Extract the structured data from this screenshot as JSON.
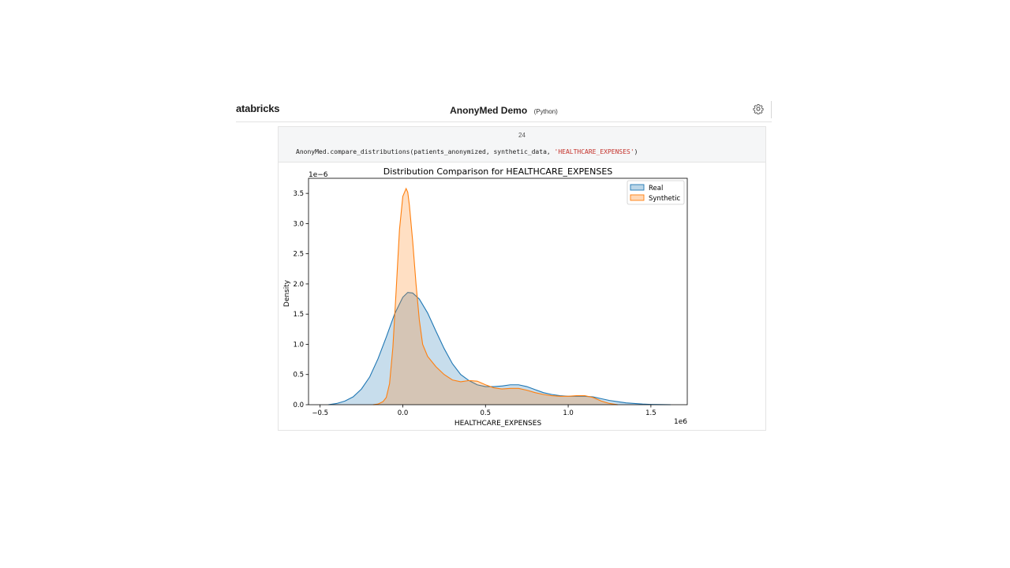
{
  "app": {
    "brand": "atabricks",
    "notebook_title": "AnonyMed Demo",
    "language": "(Python)",
    "settings_icon": "gear-icon"
  },
  "cell": {
    "number": "24",
    "code_prefix": "AnonyMed.compare_distributions(patients_anonymized, synthetic_data, ",
    "code_string": "'HEALTHCARE_EXPENSES'",
    "code_suffix": ")"
  },
  "chart_data": {
    "type": "area",
    "title": "Distribution Comparison for HEALTHCARE_EXPENSES",
    "xlabel": "HEALTHCARE_EXPENSES",
    "ylabel": "Density",
    "x_offset_text": "1e6",
    "y_offset_text": "1e−6",
    "xlim": [
      -0.57,
      1.72
    ],
    "ylim": [
      0,
      3.75
    ],
    "x_ticks": [
      -0.5,
      0.0,
      0.5,
      1.0,
      1.5
    ],
    "x_tick_labels": [
      "−0.5",
      "0.0",
      "0.5",
      "1.0",
      "1.5"
    ],
    "y_ticks": [
      0.0,
      0.5,
      1.0,
      1.5,
      2.0,
      2.5,
      3.0,
      3.5
    ],
    "y_tick_labels": [
      "0.0",
      "0.5",
      "1.0",
      "1.5",
      "2.0",
      "2.5",
      "3.0",
      "3.5"
    ],
    "legend_position": "upper right",
    "grid": false,
    "series": [
      {
        "name": "Real",
        "color": "#1f77b4",
        "x": [
          -0.45,
          -0.4,
          -0.35,
          -0.3,
          -0.25,
          -0.2,
          -0.15,
          -0.1,
          -0.05,
          0.0,
          0.03,
          0.06,
          0.1,
          0.15,
          0.2,
          0.25,
          0.3,
          0.35,
          0.4,
          0.45,
          0.5,
          0.55,
          0.6,
          0.65,
          0.7,
          0.75,
          0.8,
          0.85,
          0.9,
          0.95,
          1.0,
          1.05,
          1.1,
          1.15,
          1.2,
          1.25,
          1.3,
          1.35,
          1.4,
          1.45,
          1.5,
          1.55,
          1.62
        ],
        "y": [
          0.0,
          0.02,
          0.06,
          0.13,
          0.26,
          0.46,
          0.76,
          1.12,
          1.5,
          1.78,
          1.86,
          1.85,
          1.75,
          1.52,
          1.22,
          0.93,
          0.68,
          0.5,
          0.4,
          0.33,
          0.3,
          0.3,
          0.31,
          0.33,
          0.33,
          0.3,
          0.25,
          0.2,
          0.17,
          0.15,
          0.14,
          0.14,
          0.14,
          0.13,
          0.1,
          0.07,
          0.05,
          0.03,
          0.02,
          0.01,
          0.005,
          0.002,
          0.0
        ]
      },
      {
        "name": "Synthetic",
        "color": "#ff7f0e",
        "x": [
          -0.18,
          -0.15,
          -0.12,
          -0.1,
          -0.08,
          -0.06,
          -0.04,
          -0.02,
          0.0,
          0.02,
          0.03,
          0.04,
          0.06,
          0.08,
          0.1,
          0.12,
          0.15,
          0.2,
          0.25,
          0.3,
          0.35,
          0.4,
          0.45,
          0.5,
          0.55,
          0.6,
          0.65,
          0.7,
          0.75,
          0.8,
          0.85,
          0.9,
          0.95,
          1.0,
          1.05,
          1.1,
          1.15,
          1.2,
          1.25,
          1.3
        ],
        "y": [
          0.0,
          0.01,
          0.05,
          0.12,
          0.35,
          0.95,
          1.9,
          2.9,
          3.45,
          3.58,
          3.52,
          3.3,
          2.7,
          2.0,
          1.4,
          1.0,
          0.8,
          0.63,
          0.5,
          0.41,
          0.38,
          0.4,
          0.39,
          0.33,
          0.28,
          0.26,
          0.27,
          0.27,
          0.24,
          0.2,
          0.17,
          0.15,
          0.14,
          0.14,
          0.15,
          0.15,
          0.12,
          0.06,
          0.02,
          0.0
        ]
      }
    ]
  }
}
